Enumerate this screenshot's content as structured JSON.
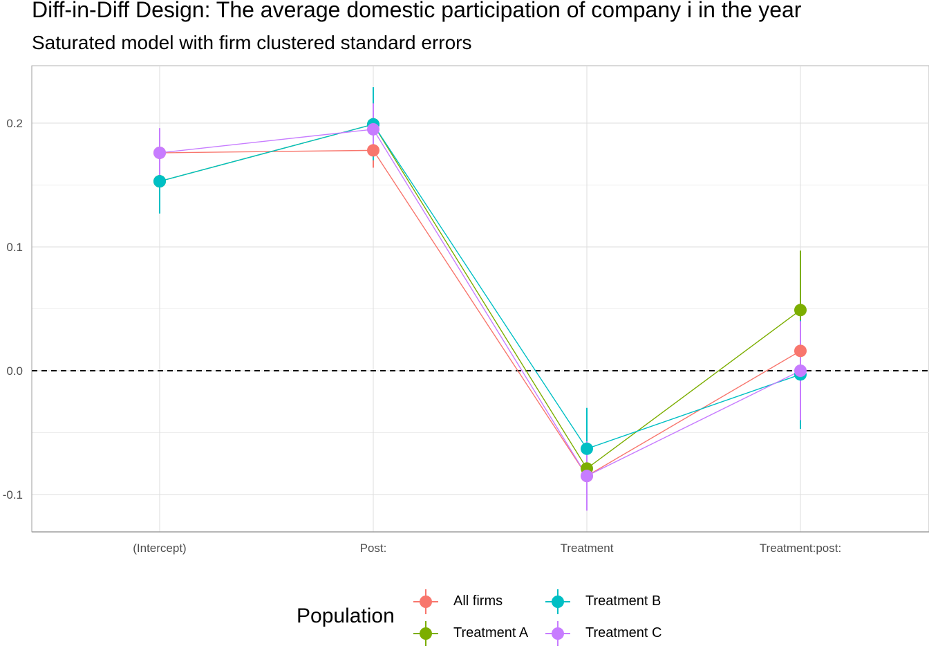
{
  "title": "Diff-in-Diff Design: The average domestic participation of company i in the year",
  "subtitle": "Saturated model with firm clustered standard errors",
  "legend": {
    "title": "Population"
  },
  "chart_data": {
    "type": "line",
    "title": "Diff-in-Diff Design: The average domestic participation of company i in the year",
    "subtitle": "Saturated model with firm clustered standard errors",
    "categories": [
      "(Intercept)",
      "Post:",
      "Treatment",
      "Treatment:post:"
    ],
    "ylim": [
      -0.13,
      0.245
    ],
    "yticks": [
      -0.1,
      0.0,
      0.1,
      0.2
    ],
    "ytick_labels": [
      "-0.1",
      "0.0",
      "0.1",
      "0.2"
    ],
    "reference_line": {
      "y": 0.0,
      "style": "dashed"
    },
    "grid": true,
    "legend_title": "Population",
    "legend_position": "bottom",
    "series": [
      {
        "name": "All firms",
        "color": "#F8766D",
        "values": [
          0.176,
          0.178,
          -0.085,
          0.016
        ],
        "lower": [
          0.165,
          0.164,
          -0.098,
          0.004
        ],
        "upper": [
          0.187,
          0.192,
          -0.072,
          0.028
        ]
      },
      {
        "name": "Treatment A",
        "color": "#7CAE00",
        "values": [
          0.153,
          0.199,
          -0.079,
          0.049
        ],
        "lower": [
          0.128,
          0.177,
          -0.092,
          0.001
        ],
        "upper": [
          0.178,
          0.221,
          -0.066,
          0.097
        ]
      },
      {
        "name": "Treatment B",
        "color": "#00BFC4",
        "values": [
          0.153,
          0.199,
          -0.063,
          -0.003
        ],
        "lower": [
          0.127,
          0.17,
          -0.096,
          -0.047
        ],
        "upper": [
          0.179,
          0.229,
          -0.03,
          0.041
        ]
      },
      {
        "name": "Treatment C",
        "color": "#C77CFF",
        "values": [
          0.176,
          0.195,
          -0.085,
          0.0
        ],
        "lower": [
          0.156,
          0.174,
          -0.113,
          -0.04
        ],
        "upper": [
          0.196,
          0.216,
          -0.057,
          0.04
        ]
      }
    ]
  }
}
